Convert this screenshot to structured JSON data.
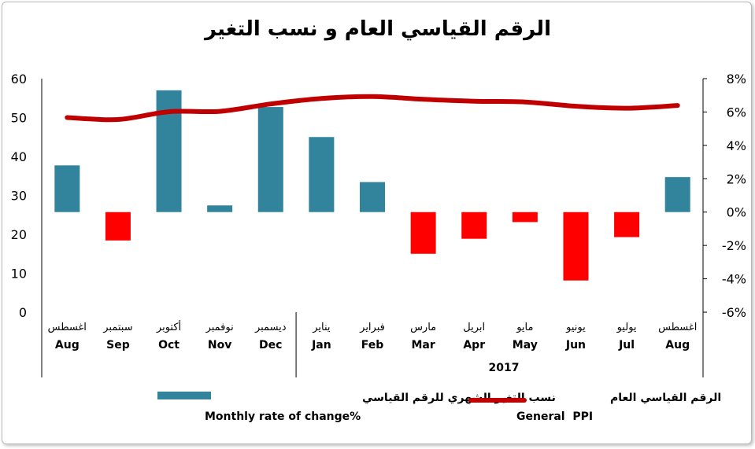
{
  "chart_data": {
    "type": "bar",
    "title": "الرقم القياسي العام و نسب التغير",
    "categories_ar": [
      "اغسطس",
      "سبتمبر",
      "أكتوبر",
      "نوفمبر",
      "ديسمبر",
      "يناير",
      "فبراير",
      "مارس",
      "ابريل",
      "مايو",
      "يونيو",
      "يوليو",
      "اغسطس"
    ],
    "categories": [
      "Aug",
      "Sep",
      "Oct",
      "Nov",
      "Dec",
      "Jan",
      "Feb",
      "Mar",
      "Apr",
      "May",
      "Jun",
      "Jul",
      "Aug"
    ],
    "year_label": "2017",
    "year_start_index": 5,
    "left_axis": {
      "ylim": [
        0,
        60
      ],
      "ticks": [
        "0",
        "10",
        "20",
        "30",
        "40",
        "50",
        "60"
      ]
    },
    "right_axis": {
      "ylim": [
        -6,
        8
      ],
      "ticks": [
        "-6%",
        "-4%",
        "-2%",
        "0%",
        "2%",
        "4%",
        "6%",
        "8%"
      ],
      "unit": "%"
    },
    "series": [
      {
        "name_ar": "نسب التغير الشهري للرقم القياسي",
        "name": "Monthly rate of change%",
        "type": "bar",
        "axis": "right",
        "values": [
          2.8,
          -1.7,
          7.3,
          0.4,
          6.3,
          4.5,
          1.8,
          -2.5,
          -1.6,
          -0.6,
          -4.1,
          -1.5,
          2.1
        ],
        "colors": {
          "positive": "#31849b",
          "negative": "#ff0000"
        }
      },
      {
        "name_ar": "الرقم القياسي العام",
        "name": "General  PPI",
        "type": "line",
        "axis": "left",
        "values": [
          50.0,
          49.5,
          51.5,
          51.6,
          53.5,
          54.9,
          55.4,
          54.7,
          54.2,
          54.0,
          52.9,
          52.4,
          53.1
        ],
        "color": "#c00000"
      }
    ],
    "grid": false,
    "legend_position": "bottom"
  }
}
